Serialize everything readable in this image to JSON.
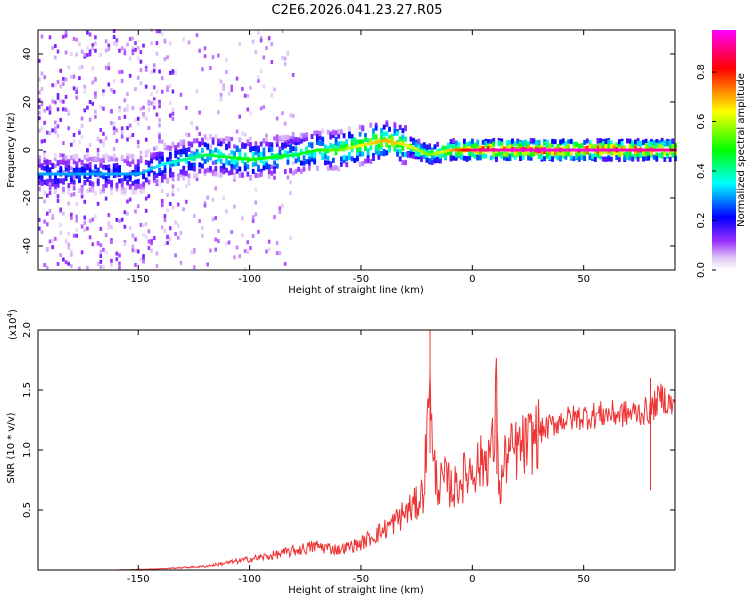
{
  "title": "C2E6.2026.041.23.27.R05",
  "chart_data": [
    {
      "type": "heatmap",
      "xlabel": "Height of straight line (km)",
      "ylabel": "Frequency (Hz)",
      "xlim": [
        -195,
        91
      ],
      "ylim": [
        -50,
        50
      ],
      "xticks": [
        -150,
        -100,
        -50,
        0,
        50
      ],
      "yticks": [
        -40,
        -20,
        0,
        20,
        40
      ],
      "grid": false,
      "colorbar": {
        "label": "Normalized spectral amplitude",
        "range": [
          0,
          0.97
        ],
        "ticks": [
          0.0,
          0.2,
          0.4,
          0.6,
          0.8
        ],
        "colormap": [
          "#ffffff",
          "#8a2be2",
          "#0000ff",
          "#00ffff",
          "#00ff00",
          "#ffff00",
          "#ff0000",
          "#ff00ff"
        ]
      },
      "ridge": {
        "description_x": [
          -150,
          -140,
          -120,
          -100,
          -80,
          -70,
          -60,
          -50,
          -40,
          -30,
          -20,
          -10,
          0,
          20,
          50,
          90
        ],
        "center_hz": [
          -10,
          -6,
          -2,
          -4,
          -2,
          0,
          0,
          2,
          4,
          2,
          -2,
          0,
          0,
          0,
          0,
          0
        ],
        "peak_amplitude": [
          0.3,
          0.35,
          0.45,
          0.5,
          0.45,
          0.5,
          0.55,
          0.65,
          0.7,
          0.65,
          0.55,
          0.7,
          0.9,
          0.95,
          0.95,
          0.9
        ]
      }
    },
    {
      "type": "line",
      "xlabel": "Height of straight line (km)",
      "ylabel": "SNR (10 * v/v)",
      "multiplier_label": "(x10",
      "multiplier_exp": "4",
      "multiplier_close": ")",
      "xlim": [
        -195,
        91
      ],
      "ylim": [
        0,
        2.0
      ],
      "xticks": [
        -150,
        -100,
        -50,
        0,
        50
      ],
      "yticks": [
        0.5,
        1.0,
        1.5,
        2.0
      ],
      "yticklabels": [
        "0.5",
        "1.0",
        "1.5",
        "2.0"
      ],
      "grid": false,
      "color": "#ee3333",
      "x": [
        -195,
        -180,
        -160,
        -140,
        -120,
        -110,
        -100,
        -90,
        -80,
        -70,
        -60,
        -50,
        -45,
        -40,
        -35,
        -30,
        -25,
        -22,
        -20,
        -19,
        -18,
        -15,
        -12,
        -10,
        -8,
        -5,
        0,
        5,
        10,
        11,
        12,
        15,
        20,
        25,
        30,
        35,
        40,
        50,
        60,
        70,
        80,
        85,
        91
      ],
      "y": [
        0.0,
        0.0,
        0.0,
        0.01,
        0.03,
        0.06,
        0.09,
        0.12,
        0.16,
        0.2,
        0.17,
        0.22,
        0.28,
        0.33,
        0.4,
        0.48,
        0.55,
        0.65,
        1.2,
        1.95,
        0.9,
        0.7,
        0.75,
        0.7,
        0.68,
        0.75,
        0.85,
        0.9,
        1.05,
        1.6,
        0.6,
        0.95,
        1.0,
        1.05,
        1.15,
        1.2,
        1.25,
        1.28,
        1.3,
        1.3,
        1.33,
        1.45,
        1.35
      ],
      "annotations": [
        {
          "x": -19,
          "y": 2.0
        },
        {
          "x": 11,
          "y": 1.6
        },
        {
          "x": 80,
          "y": 1.6
        }
      ]
    }
  ]
}
